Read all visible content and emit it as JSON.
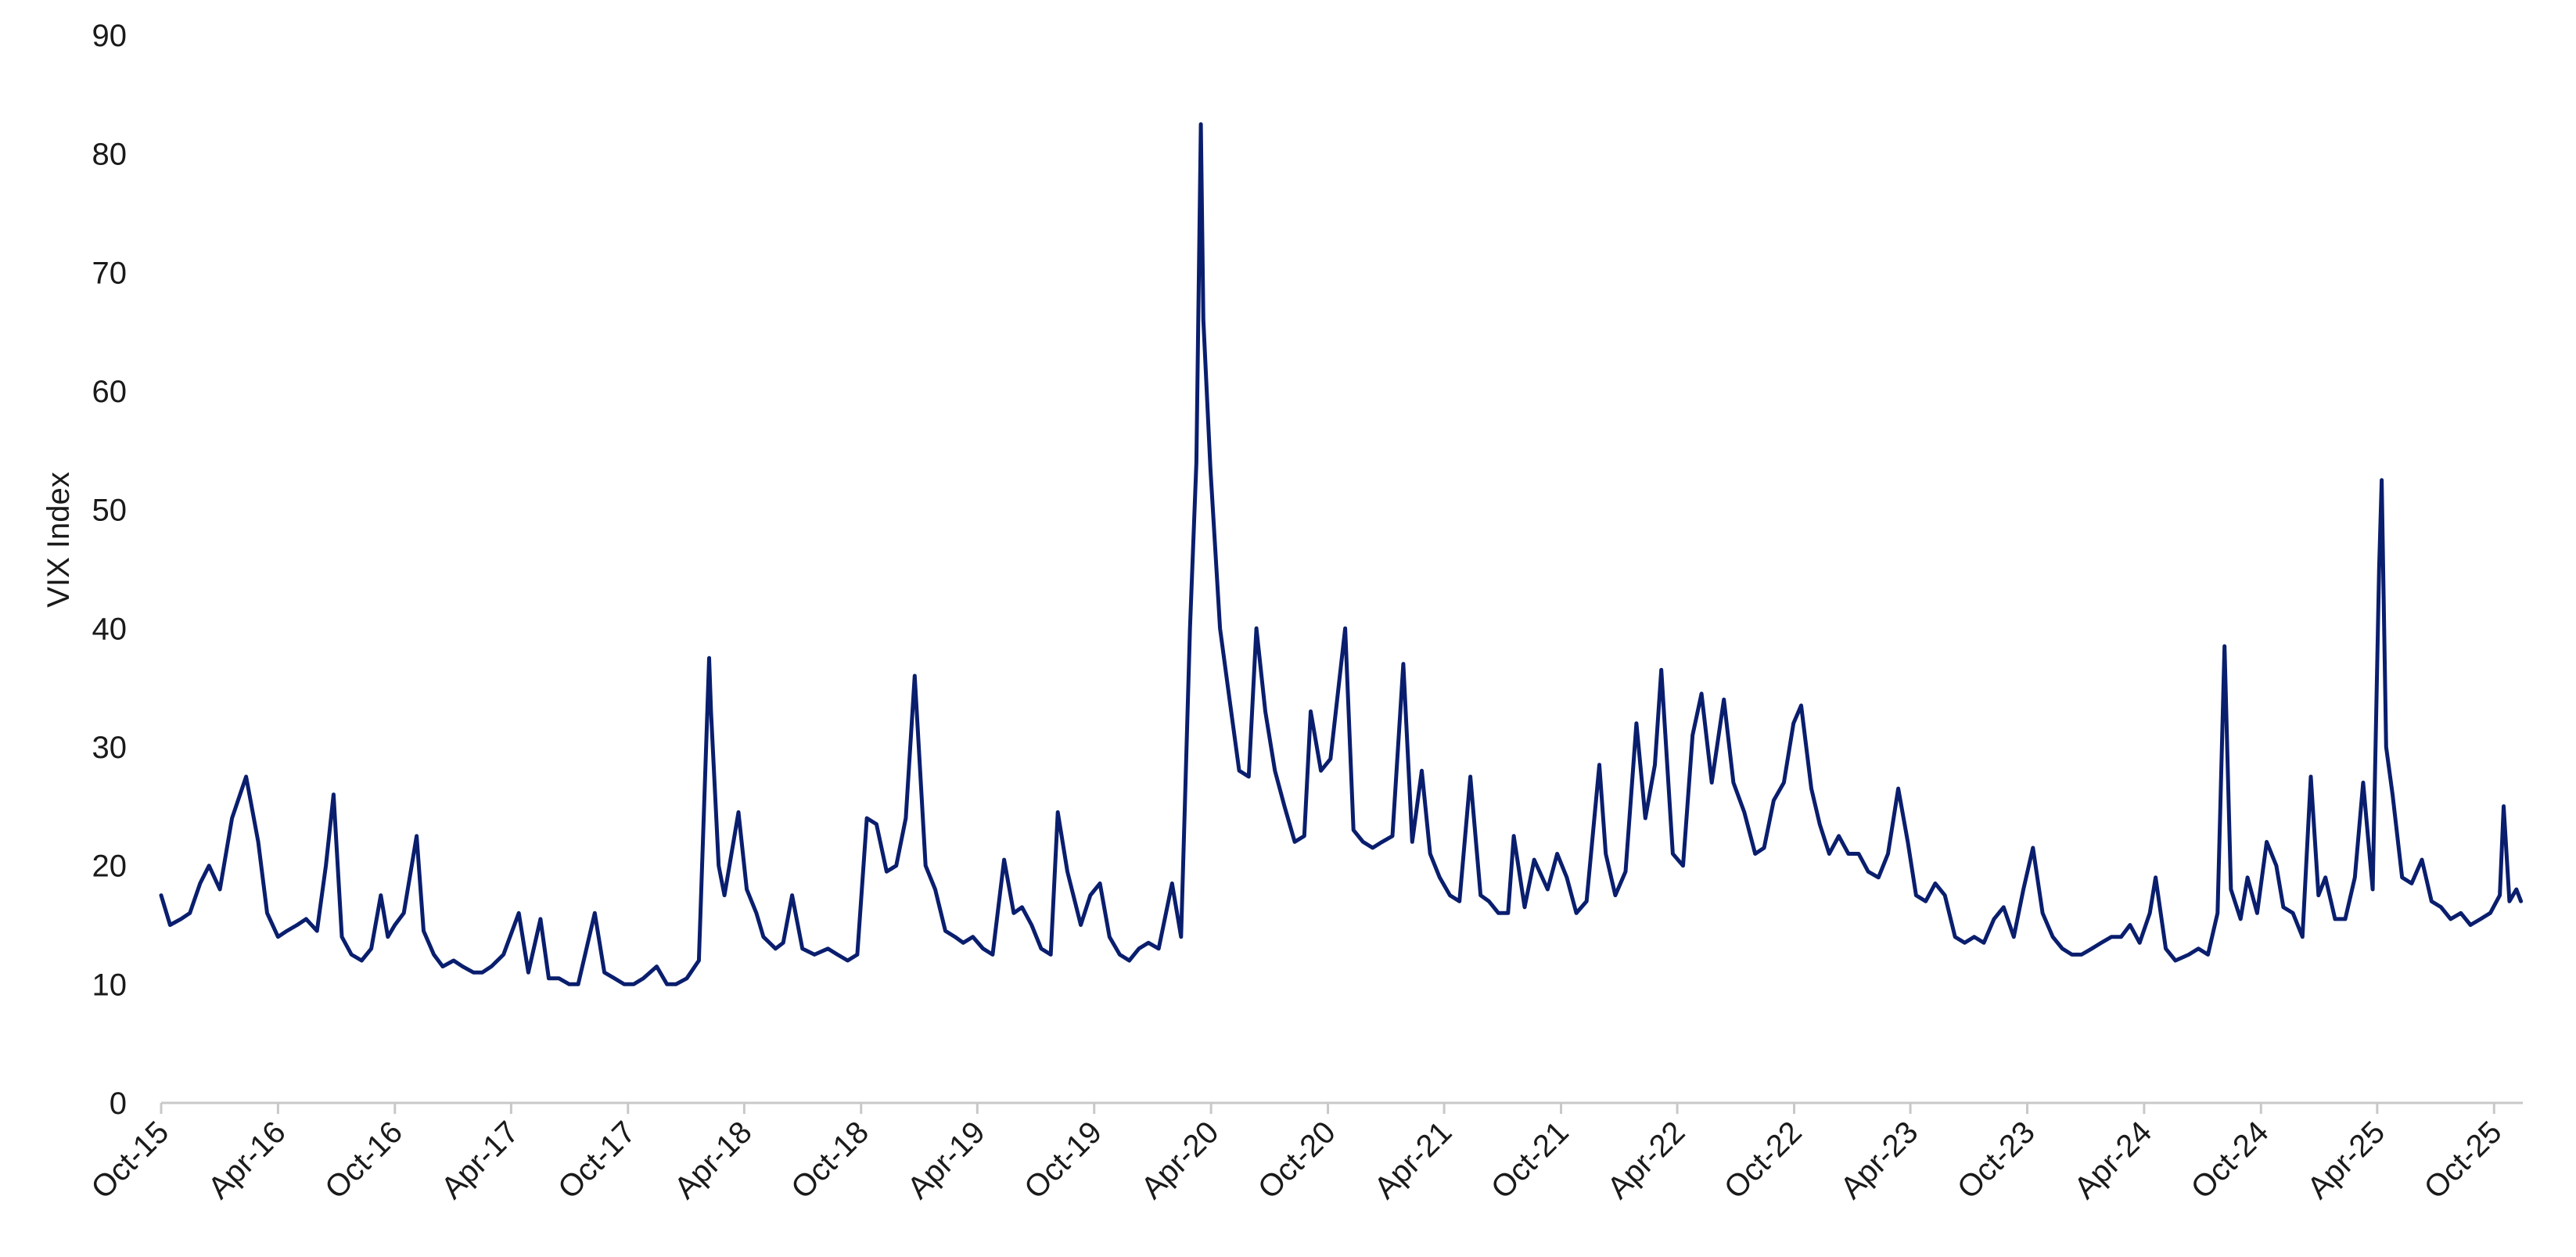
{
  "chart_data": {
    "type": "line",
    "title": "",
    "xlabel": "",
    "ylabel": "VIX Index",
    "ylim": [
      0,
      90
    ],
    "yticks": [
      0,
      10,
      20,
      30,
      40,
      50,
      60,
      70,
      80,
      90
    ],
    "xlim": [
      "2015-10-01",
      "2025-11-15"
    ],
    "xticks": [
      {
        "date": "2015-10-01",
        "label": "Oct-15"
      },
      {
        "date": "2016-04-01",
        "label": "Apr-16"
      },
      {
        "date": "2016-10-01",
        "label": "Oct-16"
      },
      {
        "date": "2017-04-01",
        "label": "Apr-17"
      },
      {
        "date": "2017-10-01",
        "label": "Oct-17"
      },
      {
        "date": "2018-04-01",
        "label": "Apr-18"
      },
      {
        "date": "2018-10-01",
        "label": "Oct-18"
      },
      {
        "date": "2019-04-01",
        "label": "Apr-19"
      },
      {
        "date": "2019-10-01",
        "label": "Oct-19"
      },
      {
        "date": "2020-04-01",
        "label": "Apr-20"
      },
      {
        "date": "2020-10-01",
        "label": "Oct-20"
      },
      {
        "date": "2021-04-01",
        "label": "Apr-21"
      },
      {
        "date": "2021-10-01",
        "label": "Oct-21"
      },
      {
        "date": "2022-04-01",
        "label": "Apr-22"
      },
      {
        "date": "2022-10-01",
        "label": "Oct-22"
      },
      {
        "date": "2023-04-01",
        "label": "Apr-23"
      },
      {
        "date": "2023-10-01",
        "label": "Oct-23"
      },
      {
        "date": "2024-04-01",
        "label": "Apr-24"
      },
      {
        "date": "2024-10-01",
        "label": "Oct-24"
      },
      {
        "date": "2025-04-01",
        "label": "Apr-25"
      },
      {
        "date": "2025-10-01",
        "label": "Oct-25"
      }
    ],
    "grid": false,
    "legend": "none",
    "line_color": "#0a1e6e",
    "axis_color": "#c8c8c8",
    "series": [
      {
        "x": [
          "2015-10-01",
          "2015-10-15",
          "2015-11-01",
          "2015-11-15",
          "2015-12-01",
          "2015-12-15",
          "2016-01-01",
          "2016-01-20",
          "2016-02-11",
          "2016-03-01",
          "2016-03-15",
          "2016-04-01",
          "2016-04-15",
          "2016-05-01",
          "2016-05-15",
          "2016-06-01",
          "2016-06-15",
          "2016-06-27",
          "2016-07-10",
          "2016-07-25",
          "2016-08-10",
          "2016-08-25",
          "2016-09-09",
          "2016-09-20",
          "2016-10-01",
          "2016-10-15",
          "2016-11-04",
          "2016-11-15",
          "2016-12-01",
          "2016-12-15",
          "2017-01-01",
          "2017-01-15",
          "2017-02-01",
          "2017-02-15",
          "2017-03-01",
          "2017-03-20",
          "2017-04-13",
          "2017-04-28",
          "2017-05-17",
          "2017-05-30",
          "2017-06-15",
          "2017-07-01",
          "2017-07-15",
          "2017-08-10",
          "2017-08-25",
          "2017-09-10",
          "2017-09-25",
          "2017-10-10",
          "2017-10-25",
          "2017-11-15",
          "2017-12-01",
          "2017-12-15",
          "2018-01-01",
          "2018-01-20",
          "2018-02-05",
          "2018-02-08",
          "2018-02-20",
          "2018-03-01",
          "2018-03-23",
          "2018-04-05",
          "2018-04-20",
          "2018-05-01",
          "2018-05-20",
          "2018-06-01",
          "2018-06-15",
          "2018-07-01",
          "2018-07-20",
          "2018-08-10",
          "2018-08-25",
          "2018-09-10",
          "2018-09-25",
          "2018-10-10",
          "2018-10-25",
          "2018-11-10",
          "2018-11-25",
          "2018-12-10",
          "2018-12-24",
          "2019-01-10",
          "2019-01-25",
          "2019-02-10",
          "2019-02-25",
          "2019-03-10",
          "2019-03-25",
          "2019-04-10",
          "2019-04-25",
          "2019-05-13",
          "2019-05-28",
          "2019-06-10",
          "2019-06-25",
          "2019-07-10",
          "2019-07-25",
          "2019-08-05",
          "2019-08-20",
          "2019-09-10",
          "2019-09-25",
          "2019-10-10",
          "2019-10-25",
          "2019-11-10",
          "2019-11-25",
          "2019-12-10",
          "2019-12-25",
          "2020-01-10",
          "2020-01-31",
          "2020-02-14",
          "2020-02-28",
          "2020-03-09",
          "2020-03-16",
          "2020-03-20",
          "2020-03-31",
          "2020-04-15",
          "2020-04-30",
          "2020-05-15",
          "2020-05-30",
          "2020-06-11",
          "2020-06-25",
          "2020-07-10",
          "2020-07-25",
          "2020-08-10",
          "2020-08-25",
          "2020-09-04",
          "2020-09-20",
          "2020-10-05",
          "2020-10-28",
          "2020-11-10",
          "2020-11-25",
          "2020-12-10",
          "2020-12-25",
          "2021-01-10",
          "2021-01-27",
          "2021-02-10",
          "2021-02-25",
          "2021-03-10",
          "2021-03-25",
          "2021-04-10",
          "2021-04-25",
          "2021-05-12",
          "2021-05-28",
          "2021-06-10",
          "2021-06-25",
          "2021-07-10",
          "2021-07-19",
          "2021-08-05",
          "2021-08-20",
          "2021-09-10",
          "2021-09-25",
          "2021-10-10",
          "2021-10-25",
          "2021-11-10",
          "2021-11-30",
          "2021-12-10",
          "2021-12-25",
          "2022-01-10",
          "2022-01-27",
          "2022-02-10",
          "2022-02-25",
          "2022-03-07",
          "2022-03-25",
          "2022-04-10",
          "2022-04-25",
          "2022-05-09",
          "2022-05-25",
          "2022-06-13",
          "2022-06-28",
          "2022-07-15",
          "2022-08-01",
          "2022-08-15",
          "2022-08-30",
          "2022-09-15",
          "2022-09-30",
          "2022-10-12",
          "2022-10-28",
          "2022-11-10",
          "2022-11-25",
          "2022-12-10",
          "2022-12-25",
          "2023-01-10",
          "2023-01-25",
          "2023-02-10",
          "2023-02-25",
          "2023-03-13",
          "2023-03-28",
          "2023-04-10",
          "2023-04-25",
          "2023-05-10",
          "2023-05-25",
          "2023-06-10",
          "2023-06-25",
          "2023-07-10",
          "2023-07-25",
          "2023-08-10",
          "2023-08-25",
          "2023-09-10",
          "2023-09-25",
          "2023-10-10",
          "2023-10-25",
          "2023-11-10",
          "2023-11-25",
          "2023-12-10",
          "2023-12-25",
          "2024-01-10",
          "2024-01-25",
          "2024-02-10",
          "2024-02-25",
          "2024-03-10",
          "2024-03-25",
          "2024-04-10",
          "2024-04-19",
          "2024-05-05",
          "2024-05-20",
          "2024-06-10",
          "2024-06-25",
          "2024-07-10",
          "2024-07-25",
          "2024-08-05",
          "2024-08-15",
          "2024-08-30",
          "2024-09-10",
          "2024-09-25",
          "2024-10-10",
          "2024-10-25",
          "2024-11-05",
          "2024-11-20",
          "2024-12-05",
          "2024-12-18",
          "2024-12-30",
          "2025-01-10",
          "2025-01-25",
          "2025-02-10",
          "2025-02-25",
          "2025-03-10",
          "2025-03-25",
          "2025-04-04",
          "2025-04-08",
          "2025-04-15",
          "2025-04-25",
          "2025-05-10",
          "2025-05-25",
          "2025-06-10",
          "2025-06-25",
          "2025-07-10",
          "2025-07-25",
          "2025-08-10",
          "2025-08-25",
          "2025-09-10",
          "2025-09-25",
          "2025-10-10",
          "2025-10-16",
          "2025-10-25",
          "2025-11-05",
          "2025-11-12"
        ],
        "values": [
          17.5,
          15.0,
          15.5,
          16.0,
          18.5,
          20.0,
          18.0,
          24.0,
          27.5,
          22.0,
          16.0,
          14.0,
          14.5,
          15.0,
          15.5,
          14.5,
          20.0,
          26.0,
          14.0,
          12.5,
          12.0,
          13.0,
          17.5,
          14.0,
          15.0,
          16.0,
          22.5,
          14.5,
          12.5,
          11.5,
          12.0,
          11.5,
          11.0,
          11.0,
          11.5,
          12.5,
          16.0,
          11.0,
          15.5,
          10.5,
          10.5,
          10.0,
          10.0,
          16.0,
          11.0,
          10.5,
          10.0,
          10.0,
          10.5,
          11.5,
          10.0,
          10.0,
          10.5,
          12.0,
          37.5,
          33.0,
          20.0,
          17.5,
          24.5,
          18.0,
          16.0,
          14.0,
          13.0,
          13.5,
          17.5,
          13.0,
          12.5,
          13.0,
          12.5,
          12.0,
          12.5,
          24.0,
          23.5,
          19.5,
          20.0,
          24.0,
          36.0,
          20.0,
          18.0,
          14.5,
          14.0,
          13.5,
          14.0,
          13.0,
          12.5,
          20.5,
          16.0,
          16.5,
          15.0,
          13.0,
          12.5,
          24.5,
          19.5,
          15.0,
          17.5,
          18.5,
          14.0,
          12.5,
          12.0,
          13.0,
          13.5,
          13.0,
          18.5,
          14.0,
          40.0,
          54.0,
          82.5,
          66.0,
          53.5,
          40.0,
          34.0,
          28.0,
          27.5,
          40.0,
          33.0,
          28.0,
          25.0,
          22.0,
          22.5,
          33.0,
          28.0,
          29.0,
          40.0,
          23.0,
          22.0,
          21.5,
          22.0,
          22.5,
          37.0,
          22.0,
          28.0,
          21.0,
          19.0,
          17.5,
          17.0,
          27.5,
          17.5,
          17.0,
          16.0,
          16.0,
          22.5,
          16.5,
          20.5,
          18.0,
          21.0,
          19.0,
          16.0,
          17.0,
          28.5,
          21.0,
          17.5,
          19.5,
          32.0,
          24.0,
          28.5,
          36.5,
          21.0,
          20.0,
          31.0,
          34.5,
          27.0,
          34.0,
          27.0,
          24.5,
          21.0,
          21.5,
          25.5,
          27.0,
          32.0,
          33.5,
          26.5,
          23.5,
          21.0,
          22.5,
          21.0,
          21.0,
          19.5,
          19.0,
          21.0,
          26.5,
          22.0,
          17.5,
          17.0,
          18.5,
          17.5,
          14.0,
          13.5,
          14.0,
          13.5,
          15.5,
          16.5,
          14.0,
          18.0,
          21.5,
          16.0,
          14.0,
          13.0,
          12.5,
          12.5,
          13.0,
          13.5,
          14.0,
          14.0,
          15.0,
          13.5,
          16.0,
          19.0,
          13.0,
          12.0,
          12.5,
          13.0,
          12.5,
          16.0,
          38.5,
          18.0,
          15.5,
          19.0,
          16.0,
          22.0,
          20.0,
          16.5,
          16.0,
          14.0,
          27.5,
          17.5,
          19.0,
          15.5,
          15.5,
          19.0,
          27.0,
          18.0,
          45.0,
          52.5,
          30.0,
          26.0,
          19.0,
          18.5,
          20.5,
          17.0,
          16.5,
          15.5,
          16.0,
          15.0,
          15.5,
          16.0,
          17.5,
          25.0,
          17.0,
          18.0,
          17.0
        ]
      }
    ]
  }
}
